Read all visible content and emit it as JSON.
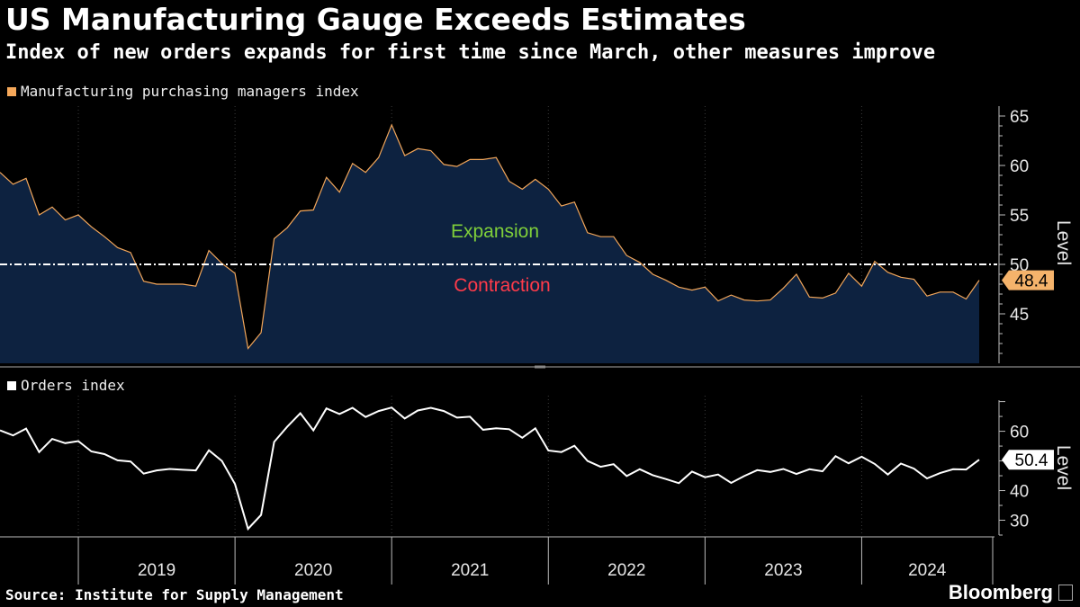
{
  "header": {
    "title": "US Manufacturing Gauge Exceeds Estimates",
    "subtitle": "Index of new orders expands for first time since March, other measures improve"
  },
  "footer": {
    "source": "Source: Institute for Supply Management",
    "brand": "Bloomberg"
  },
  "colors": {
    "background": "#000000",
    "pmi_line": "#f2a65a",
    "pmi_fill": "#0d2240",
    "orders_line": "#ffffff",
    "expansion_text": "#7fcf3a",
    "contraction_text": "#ff3b4a",
    "pmi_label_bg": "#f5b36b"
  },
  "x_axis": {
    "years": [
      "2019",
      "2020",
      "2021",
      "2022",
      "2023",
      "2024"
    ],
    "range": [
      "2018-07",
      "2024-10"
    ]
  },
  "chart_data": [
    {
      "type": "area",
      "legend": "Manufacturing purchasing managers index",
      "ylabel": "Level",
      "ylim": [
        40,
        66
      ],
      "yticks": [
        45,
        50,
        55,
        60,
        65
      ],
      "threshold": 50,
      "annotations": {
        "above": "Expansion",
        "below": "Contraction"
      },
      "last_value_label": "48.4",
      "start": "2018-07",
      "values": [
        59.3,
        58.1,
        58.7,
        55.0,
        55.8,
        54.5,
        55.0,
        53.8,
        52.8,
        51.7,
        51.2,
        48.3,
        48.0,
        48.0,
        48.0,
        47.8,
        51.4,
        50.1,
        49.1,
        41.5,
        43.1,
        52.6,
        53.7,
        55.4,
        55.5,
        58.8,
        57.3,
        60.2,
        59.3,
        60.8,
        64.1,
        61.0,
        61.7,
        61.5,
        60.1,
        59.9,
        60.6,
        60.6,
        60.8,
        58.4,
        57.6,
        58.6,
        57.6,
        55.9,
        56.3,
        53.2,
        52.8,
        52.8,
        50.9,
        50.2,
        49.0,
        48.4,
        47.7,
        47.4,
        47.7,
        46.3,
        46.9,
        46.4,
        46.3,
        46.4,
        47.6,
        49.0,
        46.7,
        46.6,
        47.1,
        49.1,
        47.8,
        50.3,
        49.2,
        48.7,
        48.5,
        46.8,
        47.2,
        47.2,
        46.5,
        48.4
      ]
    },
    {
      "type": "line",
      "legend": "Orders index",
      "ylabel": "Level",
      "ylim": [
        25,
        72
      ],
      "yticks": [
        30,
        40,
        50,
        60
      ],
      "last_value_label": "50.4",
      "start": "2018-07",
      "values": [
        60.3,
        58.6,
        60.9,
        53.0,
        57.4,
        56.0,
        56.7,
        53.2,
        52.3,
        50.2,
        49.8,
        45.7,
        46.8,
        47.3,
        47.0,
        46.8,
        53.6,
        50.0,
        42.2,
        27.1,
        31.8,
        56.4,
        61.5,
        66.1,
        60.3,
        67.7,
        65.8,
        67.9,
        64.8,
        66.8,
        68.0,
        64.3,
        67.0,
        67.9,
        66.8,
        64.6,
        64.9,
        60.5,
        61.0,
        60.7,
        57.8,
        61.0,
        53.5,
        53.0,
        55.1,
        50.0,
        48.0,
        48.9,
        44.9,
        47.2,
        45.2,
        43.9,
        42.5,
        46.4,
        44.5,
        45.4,
        42.6,
        44.9,
        46.9,
        46.3,
        47.3,
        45.6,
        47.2,
        46.5,
        51.6,
        49.2,
        51.4,
        49.0,
        45.4,
        49.1,
        47.4,
        44.1,
        45.9,
        47.2,
        47.1,
        50.4
      ]
    }
  ]
}
